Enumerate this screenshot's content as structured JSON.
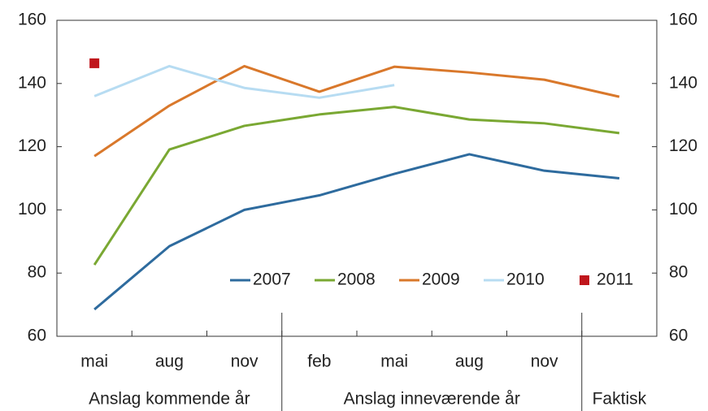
{
  "chart_data": {
    "type": "line",
    "categories": [
      "mai",
      "aug",
      "nov",
      "feb",
      "mai",
      "aug",
      "nov",
      null
    ],
    "groups": [
      "Anslag kommende år",
      "Anslag inneværende år",
      "Faktisk"
    ],
    "series": [
      {
        "name": "2007",
        "color": "#2e6b9e",
        "values": [
          68.5,
          88.5,
          100,
          104.6,
          111.4,
          117.6,
          112.4,
          110
        ]
      },
      {
        "name": "2008",
        "color": "#7aa833",
        "values": [
          82.6,
          119.1,
          126.6,
          130.2,
          132.6,
          128.6,
          127.4,
          124.3
        ]
      },
      {
        "name": "2009",
        "color": "#d9782b",
        "values": [
          117,
          133,
          145.5,
          137.4,
          145.3,
          143.5,
          141.2,
          135.8
        ]
      },
      {
        "name": "2010",
        "color": "#b7dcf2",
        "values": [
          136,
          145.5,
          138.6,
          135.5,
          139.5,
          null,
          null,
          null
        ]
      },
      {
        "name": "2011",
        "color": "#c0161c",
        "marker": "square",
        "values": [
          146.4,
          null,
          null,
          null,
          null,
          null,
          null,
          null
        ]
      }
    ],
    "ylim": [
      60,
      160
    ],
    "yticks": [
      60,
      80,
      100,
      120,
      140,
      160
    ],
    "y2lim": [
      60,
      160
    ],
    "y2ticks": [
      60,
      80,
      100,
      120,
      140,
      160
    ],
    "grid": false,
    "legend": "lower right"
  }
}
